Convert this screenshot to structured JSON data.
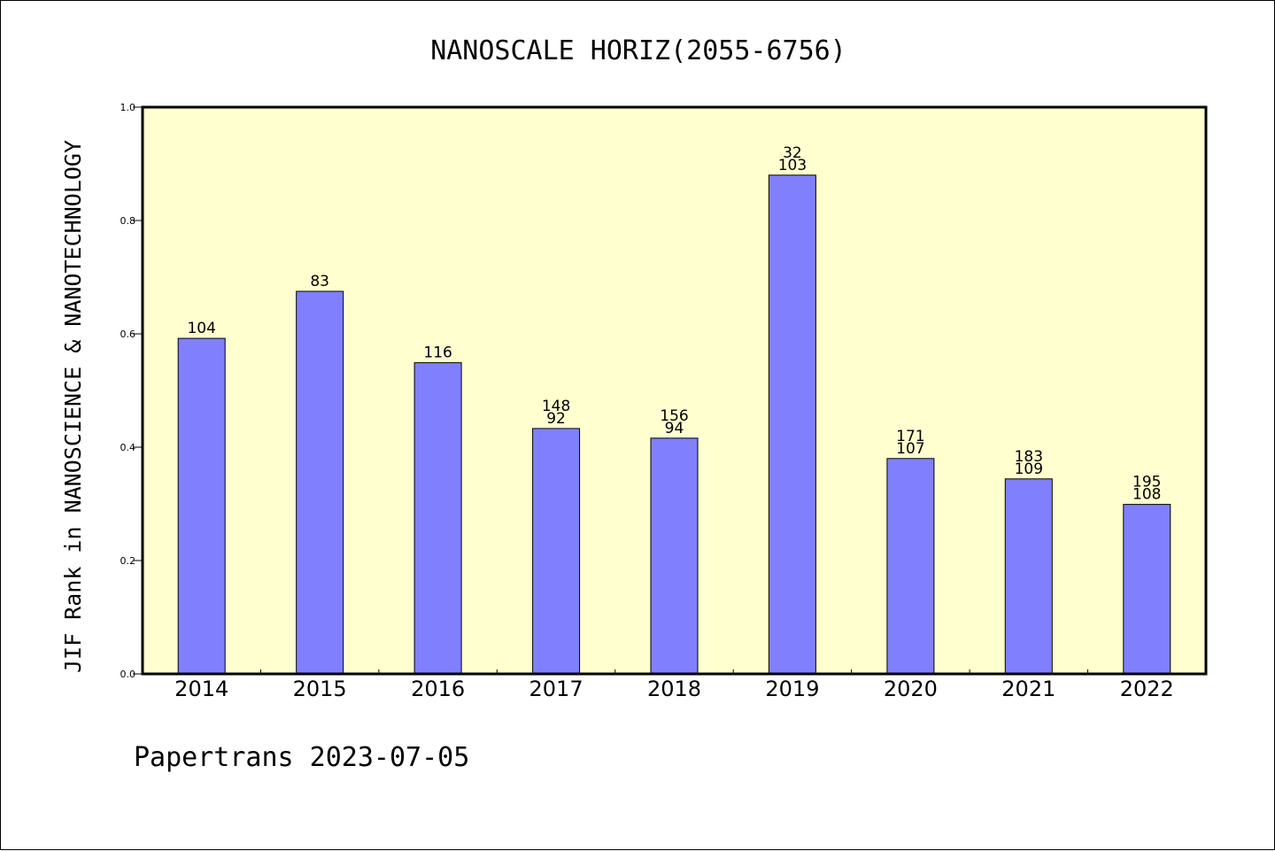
{
  "chart_data": {
    "type": "bar",
    "title": "NANOSCALE HORIZ(2055-6756)",
    "xlabel": "",
    "ylabel": "JIF Rank in NANOSCIENCE & NANOTECHNOLOGY",
    "ylim": [
      0,
      1.0
    ],
    "yticks": [
      "0.0",
      "0.2",
      "0.4",
      "0.6",
      "0.8",
      "1.0"
    ],
    "grid": false,
    "categories": [
      "2014",
      "2015",
      "2016",
      "2017",
      "2018",
      "2019",
      "2020",
      "2021",
      "2022"
    ],
    "values": [
      0.592,
      0.675,
      0.549,
      0.433,
      0.416,
      0.88,
      0.38,
      0.344,
      0.299
    ],
    "bar_labels": [
      [
        "104"
      ],
      [
        "83"
      ],
      [
        "116"
      ],
      [
        "148",
        "92"
      ],
      [
        "156",
        "94"
      ],
      [
        "32",
        "103"
      ],
      [
        "171",
        "107"
      ],
      [
        "183",
        "109"
      ],
      [
        "195",
        "108"
      ]
    ],
    "colors": {
      "bar": "#8080ff",
      "plot_background": "#ffffd0"
    },
    "footer": "Papertrans 2023-07-05"
  }
}
